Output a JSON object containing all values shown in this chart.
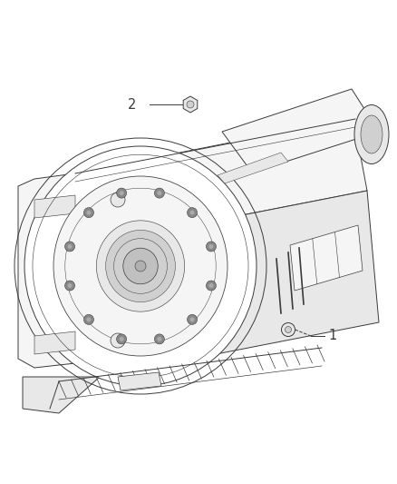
{
  "background_color": "#ffffff",
  "line_color": "#3a3a3a",
  "line_color_light": "#666666",
  "fill_white": "#ffffff",
  "fill_light": "#f5f5f5",
  "fill_mid": "#e8e8e8",
  "fill_dark": "#d0d0d0",
  "label1_text": "1",
  "label2_text": "2",
  "fig_width": 4.38,
  "fig_height": 5.33,
  "dpi": 100,
  "label_fontsize": 10.5
}
